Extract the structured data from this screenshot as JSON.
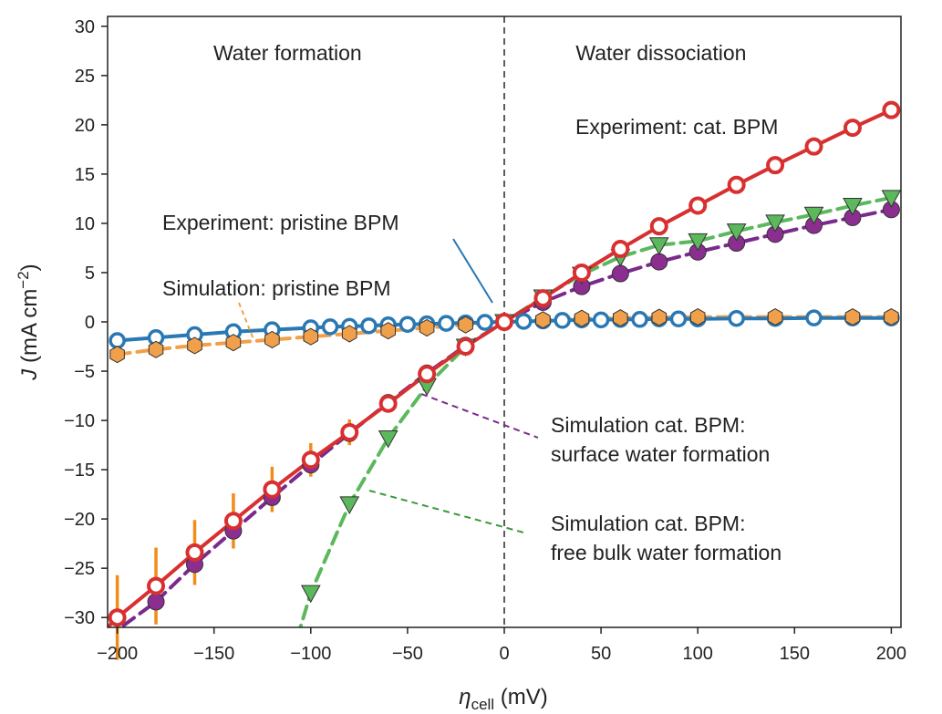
{
  "chart_data": {
    "type": "line",
    "title": "",
    "xlabel": {
      "symbol": "η",
      "subscript": "cell",
      "unit": "(mV)"
    },
    "ylabel": {
      "symbol": "J",
      "unit_main": "(mA cm",
      "unit_sup": "−2",
      "unit_end": ")"
    },
    "xlim": [
      -205,
      205
    ],
    "ylim": [
      -31,
      31
    ],
    "x_ticks": [
      -200,
      -150,
      -100,
      -50,
      0,
      50,
      100,
      150,
      200
    ],
    "x_tick_labels": [
      "−200",
      "−150",
      "−100",
      "−50",
      "0",
      "50",
      "100",
      "150",
      "200"
    ],
    "y_ticks": [
      -30,
      -25,
      -20,
      -15,
      -10,
      -5,
      0,
      5,
      10,
      15,
      20,
      25,
      30
    ],
    "y_tick_labels": [
      "−30",
      "−25",
      "−20",
      "−15",
      "−10",
      "−5",
      "0",
      "5",
      "10",
      "15",
      "20",
      "25",
      "30"
    ],
    "grid": false,
    "vline_x": 0,
    "regions": {
      "left": "Water formation",
      "right": "Water dissociation"
    },
    "colors": {
      "exp_pristine": "#2a78b3",
      "sim_pristine": "#f0a04b",
      "exp_cat": "#d83030",
      "exp_cat_marker_fill": "#ffffff",
      "errorbar": "#f08c1a",
      "sim_surface": "#7a2a8c",
      "sim_surface_marker": "#8b2e8f",
      "sim_bulk": "#5cb85c",
      "sim_bulk_marker": "#5cb85c",
      "axis": "#222222"
    },
    "series": [
      {
        "name": "Experiment: pristine BPM",
        "x": [
          -200,
          -180,
          -160,
          -140,
          -120,
          -100,
          -90,
          -80,
          -70,
          -60,
          -50,
          -40,
          -30,
          -20,
          -10,
          0,
          10,
          20,
          30,
          40,
          50,
          60,
          70,
          80,
          90,
          100,
          120,
          140,
          160,
          180,
          200
        ],
        "y": [
          -1.9,
          -1.6,
          -1.3,
          -1.0,
          -0.8,
          -0.6,
          -0.5,
          -0.45,
          -0.4,
          -0.3,
          -0.25,
          -0.2,
          -0.15,
          -0.1,
          -0.05,
          0,
          0.05,
          0.1,
          0.15,
          0.2,
          0.2,
          0.25,
          0.25,
          0.3,
          0.3,
          0.3,
          0.35,
          0.35,
          0.4,
          0.4,
          0.4
        ]
      },
      {
        "name": "Simulation: pristine BPM",
        "x": [
          -200,
          -180,
          -160,
          -140,
          -120,
          -100,
          -80,
          -60,
          -40,
          -20,
          0,
          20,
          40,
          60,
          80,
          100,
          140,
          180,
          200
        ],
        "y": [
          -3.3,
          -2.8,
          -2.4,
          -2.1,
          -1.8,
          -1.5,
          -1.2,
          -0.9,
          -0.6,
          -0.3,
          0,
          0.2,
          0.35,
          0.4,
          0.45,
          0.5,
          0.5,
          0.5,
          0.5
        ]
      },
      {
        "name": "Experiment: cat. BPM",
        "x": [
          -200,
          -180,
          -160,
          -140,
          -120,
          -100,
          -80,
          -60,
          -40,
          -20,
          0,
          20,
          40,
          60,
          80,
          100,
          120,
          140,
          160,
          180,
          200
        ],
        "y": [
          -30,
          -26.8,
          -23.4,
          -20.2,
          -17,
          -14,
          -11.2,
          -8.3,
          -5.3,
          -2.5,
          0,
          2.4,
          5.0,
          7.4,
          9.7,
          11.8,
          13.9,
          15.9,
          17.8,
          19.7,
          21.5
        ],
        "yerr": [
          4.3,
          3.9,
          3.3,
          2.8,
          2.3,
          1.7,
          1.3,
          0.9,
          0.4,
          0.2,
          0,
          0.2,
          0.3,
          0.4,
          0.5,
          0.5,
          0.6,
          0.6,
          0.6,
          0.7,
          0.7
        ]
      },
      {
        "name": "Simulation cat. BPM: surface water formation",
        "x": [
          -180,
          -160,
          -140,
          -120,
          -100,
          -80,
          -60,
          -40,
          -20,
          0,
          20,
          40,
          60,
          80,
          100,
          120,
          140,
          160,
          180,
          200
        ],
        "y": [
          -28.4,
          -24.6,
          -21.2,
          -17.8,
          -14.5,
          -11.3,
          -8.2,
          -5.2,
          -2.4,
          0,
          2.0,
          3.6,
          4.9,
          6.1,
          7.1,
          8.0,
          8.9,
          9.8,
          10.6,
          11.4
        ]
      },
      {
        "name": "Simulation cat. BPM: free bulk water formation",
        "x": [
          -100,
          -80,
          -60,
          -40,
          -20,
          0,
          20,
          40,
          60,
          80,
          100,
          120,
          140,
          160,
          180,
          200
        ],
        "y": [
          -27.5,
          -18.5,
          -11.8,
          -6.5,
          -2.5,
          0,
          2.5,
          4.8,
          6.6,
          7.8,
          8.2,
          9.2,
          10.1,
          10.9,
          11.8,
          12.6
        ]
      }
    ],
    "annotations": [
      {
        "text": "Experiment: pristine BPM",
        "target": "Experiment: pristine BPM"
      },
      {
        "text": "Simulation: pristine BPM",
        "target": "Simulation: pristine BPM"
      },
      {
        "text": "Experiment: cat. BPM",
        "target": "Experiment: cat. BPM"
      },
      {
        "text": "Simulation cat. BPM:",
        "text2": "surface water formation",
        "target": "Simulation cat. BPM: surface water formation"
      },
      {
        "text": "Simulation cat. BPM:",
        "text2": "free bulk water formation",
        "target": "Simulation cat. BPM: free bulk water formation"
      }
    ]
  }
}
